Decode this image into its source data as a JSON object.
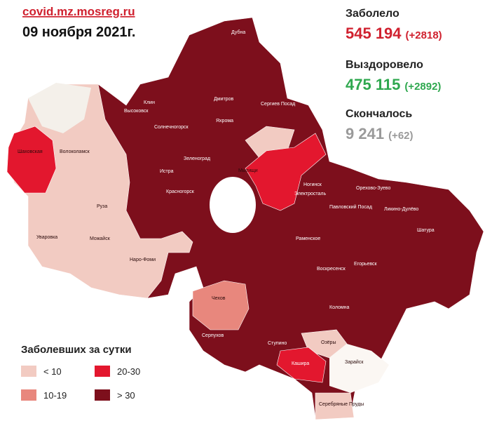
{
  "header": {
    "source": "covid.mz.mosreg.ru",
    "date": "09 ноября 2021г."
  },
  "stats": [
    {
      "label": "Заболело",
      "value": "545 194",
      "delta": "(+2818)"
    },
    {
      "label": "Выздоровело",
      "value": "475 115",
      "delta": "(+2892)"
    },
    {
      "label": "Скончалось",
      "value": "9 241",
      "delta": "(+62)"
    }
  ],
  "legend": {
    "title": "Заболевших за сутки",
    "items": [
      {
        "label": "< 10",
        "color": "#f2cbc2"
      },
      {
        "label": "10-19",
        "color": "#e8877d"
      },
      {
        "label": "20-30",
        "color": "#e3172e"
      },
      {
        "label": "> 30",
        "color": "#7d0f1c"
      }
    ]
  },
  "map": {
    "labels": [
      "Дубна",
      "Дмитров",
      "Сергиев Посад",
      "Клин",
      "Высоковск",
      "Солнечногорск",
      "Яхрома",
      "Зеленоград",
      "Истра",
      "Мытищи",
      "Красногорск",
      "Шаховская",
      "Волоколамск",
      "Руза",
      "Уваровка",
      "Можайск",
      "Наро-Фоми",
      "Ногинск",
      "Электросталь",
      "Павловский Посад",
      "Орехово-Зуево",
      "Ликино-Дулёво",
      "Раменское",
      "Воскресенск",
      "Егорьевск",
      "Шатура",
      "Коломна",
      "Чехов",
      "Серпухов",
      "Ступино",
      "Озёры",
      "Зарайск",
      "Кашира",
      "Серебряные Пруды"
    ]
  }
}
